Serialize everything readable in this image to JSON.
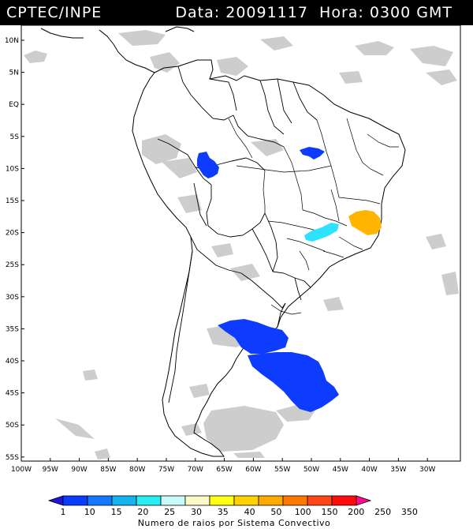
{
  "header": {
    "source": "CPTEC/INPE",
    "date_label": "Data:",
    "date_value": "20091117",
    "time_label": "Hora:",
    "time_value": "0300 GMT"
  },
  "map": {
    "lat_labels": [
      "10N",
      "5N",
      "EQ",
      "5S",
      "10S",
      "15S",
      "20S",
      "25S",
      "30S",
      "35S",
      "40S",
      "45S",
      "50S",
      "55S"
    ],
    "lon_labels": [
      "100W",
      "95W",
      "90W",
      "85W",
      "80W",
      "75W",
      "70W",
      "65W",
      "60W",
      "55W",
      "50W",
      "45W",
      "40W",
      "35W",
      "30W"
    ],
    "lightning_systems": [
      {
        "name": "western Brazil / Peru border cluster",
        "value_class": "1-10",
        "color": "#0d3cff"
      },
      {
        "name": "Para state cluster",
        "value_class": "1-10",
        "color": "#0d3cff"
      },
      {
        "name": "Minas Gerais cluster",
        "value_class": "20-25",
        "color": "#2de2ff"
      },
      {
        "name": "Bahia / Espirito Santo cluster",
        "value_class": "40-50",
        "color": "#ffb400"
      },
      {
        "name": "Uruguay / Buenos Aires cluster",
        "value_class": "1-10",
        "color": "#0d3cff"
      },
      {
        "name": "Argentine Sea cluster",
        "value_class": "1-10",
        "color": "#0d3cff"
      }
    ]
  },
  "colorbar": {
    "labels": [
      "1",
      "10",
      "15",
      "20",
      "25",
      "30",
      "35",
      "40",
      "50",
      "100",
      "150",
      "200",
      "250",
      "350"
    ],
    "colors": [
      "#1e16d6",
      "#0a3cff",
      "#1478ff",
      "#14b4f0",
      "#28eef0",
      "#c8fafa",
      "#fafac8",
      "#ffff14",
      "#ffd200",
      "#ffaa00",
      "#ff7800",
      "#ff4614",
      "#ff0a0a",
      "#ff0a8c"
    ],
    "title": "Numero de raios por Sistema Convectivo"
  }
}
